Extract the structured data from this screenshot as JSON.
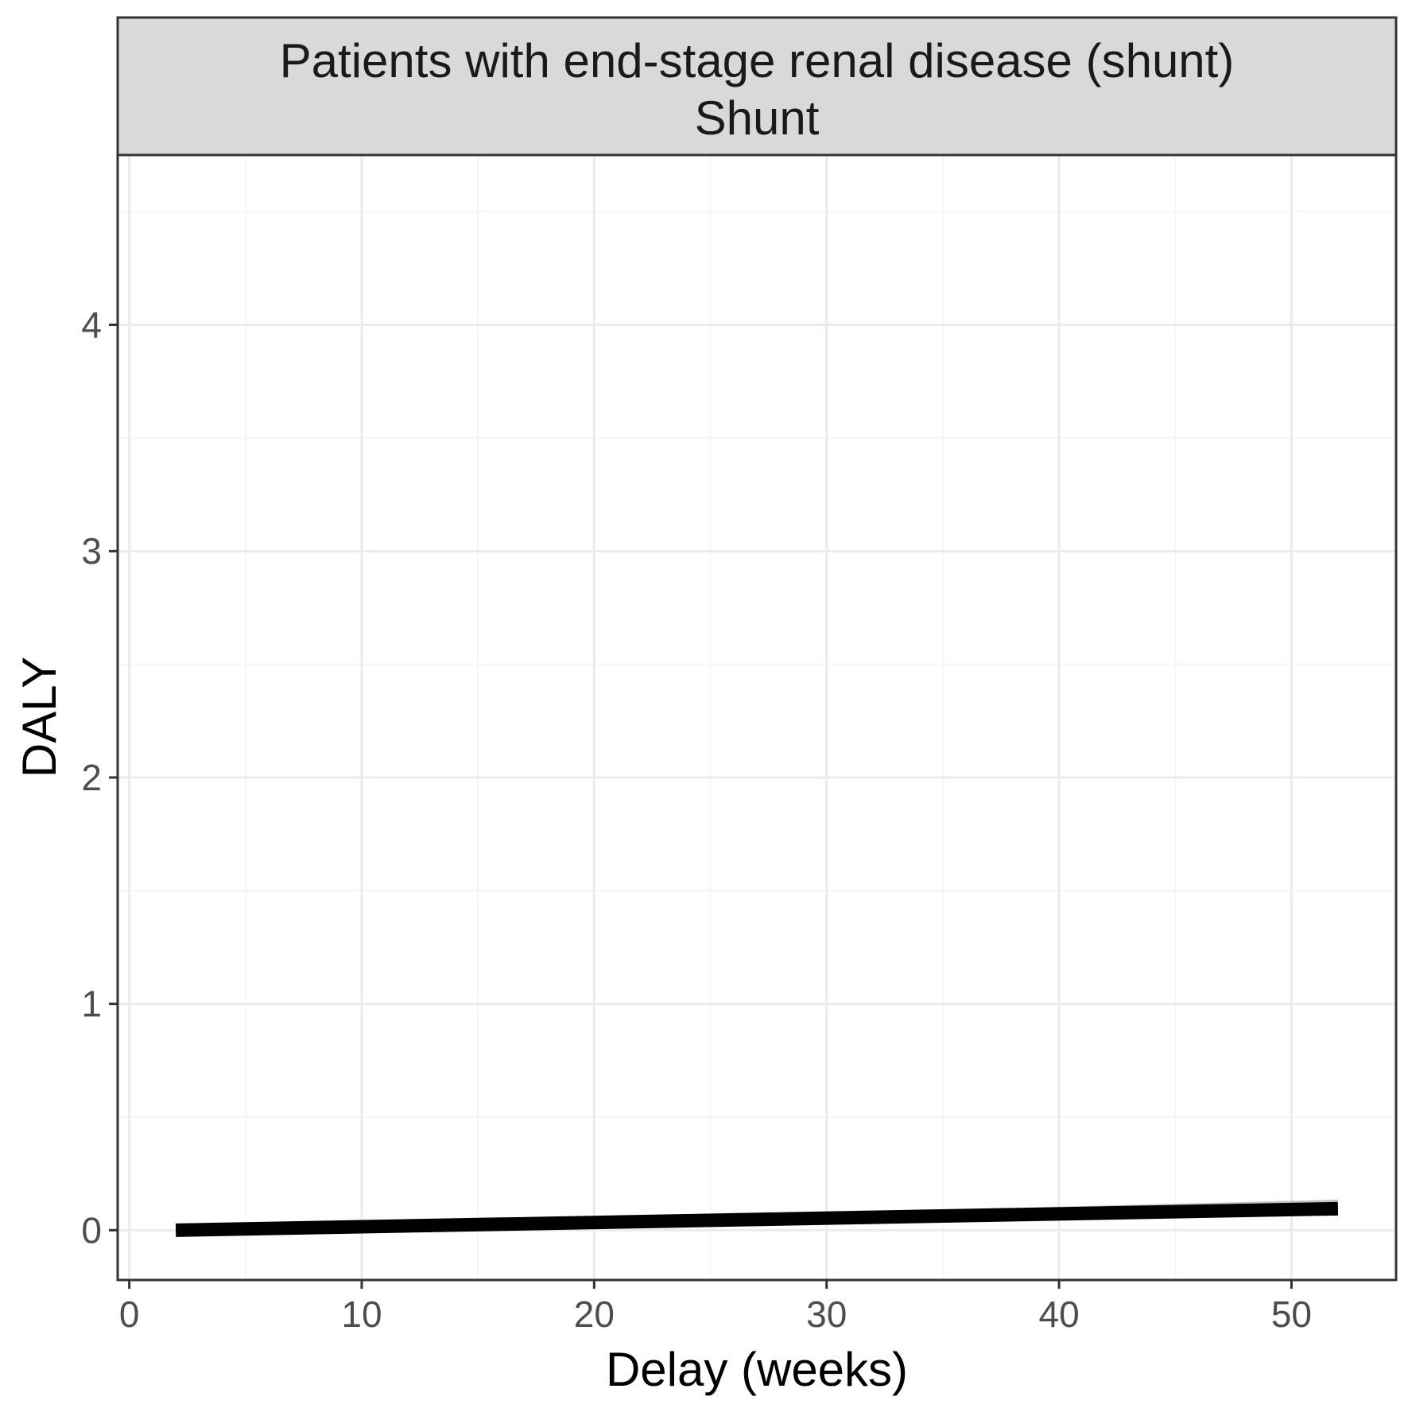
{
  "chart_data": {
    "type": "line",
    "facet": {
      "line1": "Patients with end-stage renal disease (shunt)",
      "line2": "Shunt"
    },
    "xlabel": "Delay (weeks)",
    "ylabel": "DALY",
    "xlim": [
      -0.5,
      54.5
    ],
    "ylim": [
      -0.22,
      4.75
    ],
    "x_ticks": [
      0,
      10,
      20,
      30,
      40,
      50
    ],
    "y_ticks": [
      0,
      1,
      2,
      3,
      4
    ],
    "x_minor": [
      5,
      15,
      25,
      35,
      45
    ],
    "y_minor": [
      0.5,
      1.5,
      2.5,
      3.5,
      4.5
    ],
    "grid": true,
    "legend": "none",
    "series": [
      {
        "x": [
          2,
          52
        ],
        "y": [
          0.0,
          0.095
        ],
        "ci_lower": [
          -0.005,
          0.065
        ],
        "ci_upper": [
          0.005,
          0.135
        ],
        "color": "#000000",
        "ribbon_color": "#999999"
      }
    ],
    "colors": {
      "strip_fill": "#d9d9d9",
      "frame": "#333333",
      "grid_major": "#ebebeb",
      "grid_minor": "#f5f5f5"
    }
  }
}
